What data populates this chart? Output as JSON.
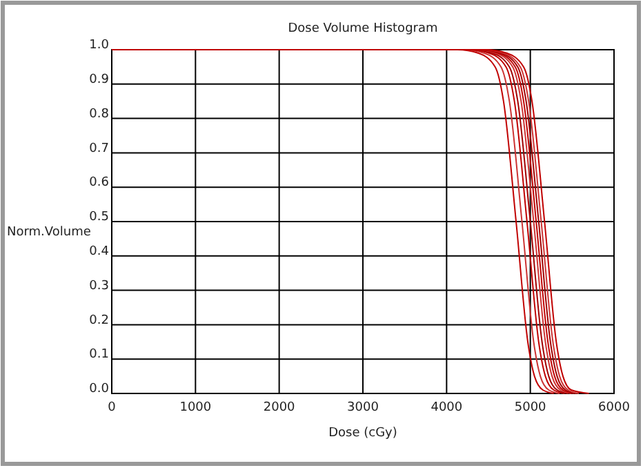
{
  "chart_data": {
    "type": "line",
    "title": "Dose Volume Histogram",
    "xlabel": "Dose (cGy)",
    "ylabel": "Norm.Volume",
    "xlim": [
      0,
      6000
    ],
    "xticks": [
      0,
      1000,
      2000,
      3000,
      4000,
      5000,
      6000
    ],
    "ylim": [
      0,
      1
    ],
    "yticks": [
      {
        "value": 0,
        "label": "0.0"
      },
      {
        "value": 0.1,
        "label": "0.1"
      },
      {
        "value": 0.2,
        "label": "0.2"
      },
      {
        "value": 0.3,
        "label": "0.3"
      },
      {
        "value": 0.4,
        "label": "0.4"
      },
      {
        "value": 0.5,
        "label": "0.5"
      },
      {
        "value": 0.6,
        "label": "0.6"
      },
      {
        "value": 0.7,
        "label": "0.7"
      },
      {
        "value": 0.8,
        "label": "0.8"
      },
      {
        "value": 0.9,
        "label": "0.9"
      },
      {
        "value": 1,
        "label": "1.0"
      }
    ],
    "grid": true,
    "marker": "none",
    "line_style": "solid",
    "series": [
      {
        "color": "#c00000",
        "x": [
          0,
          4130,
          4380,
          4580,
          4680,
          4830,
          4970,
          5050,
          5150,
          5280
        ],
        "values": [
          1,
          1,
          0.99,
          0.95,
          0.85,
          0.5,
          0.15,
          0.05,
          0.01,
          0
        ]
      },
      {
        "color": "#cc3333",
        "x": [
          0,
          4200,
          4450,
          4650,
          4750,
          4900,
          5040,
          5120,
          5220,
          5350
        ],
        "values": [
          1,
          1,
          0.99,
          0.95,
          0.85,
          0.5,
          0.15,
          0.05,
          0.01,
          0
        ]
      },
      {
        "color": "#c00000",
        "x": [
          0,
          4260,
          4510,
          4710,
          4810,
          4960,
          5100,
          5180,
          5280,
          5410
        ],
        "values": [
          1,
          1,
          0.99,
          0.95,
          0.85,
          0.5,
          0.15,
          0.05,
          0.01,
          0
        ]
      },
      {
        "color": "#a00000",
        "x": [
          0,
          4300,
          4550,
          4750,
          4850,
          5000,
          5140,
          5220,
          5320,
          5450
        ],
        "values": [
          1,
          1,
          0.99,
          0.95,
          0.85,
          0.5,
          0.15,
          0.05,
          0.01,
          0
        ]
      },
      {
        "color": "#cc3333",
        "x": [
          0,
          4340,
          4590,
          4790,
          4890,
          5040,
          5180,
          5260,
          5360,
          5490
        ],
        "values": [
          1,
          1,
          0.99,
          0.95,
          0.85,
          0.5,
          0.15,
          0.05,
          0.01,
          0
        ]
      },
      {
        "color": "#c00000",
        "x": [
          0,
          4370,
          4620,
          4820,
          4920,
          5070,
          5210,
          5290,
          5390,
          5520
        ],
        "values": [
          1,
          1,
          0.99,
          0.95,
          0.85,
          0.5,
          0.15,
          0.05,
          0.01,
          0
        ]
      },
      {
        "color": "#a00000",
        "x": [
          0,
          4400,
          4650,
          4850,
          4950,
          5100,
          5240,
          5320,
          5420,
          5550
        ],
        "values": [
          1,
          1,
          0.99,
          0.95,
          0.85,
          0.5,
          0.15,
          0.05,
          0.01,
          0
        ]
      },
      {
        "color": "#cc3333",
        "x": [
          0,
          4430,
          4680,
          4880,
          4980,
          5130,
          5270,
          5350,
          5450,
          5580
        ],
        "values": [
          1,
          1,
          0.99,
          0.95,
          0.85,
          0.5,
          0.15,
          0.05,
          0.01,
          0
        ]
      },
      {
        "color": "#c00000",
        "x": [
          0,
          4470,
          4720,
          4920,
          5020,
          5170,
          5310,
          5390,
          5490,
          5700
        ],
        "values": [
          1,
          1,
          0.99,
          0.95,
          0.85,
          0.5,
          0.15,
          0.05,
          0.01,
          0
        ]
      }
    ]
  }
}
